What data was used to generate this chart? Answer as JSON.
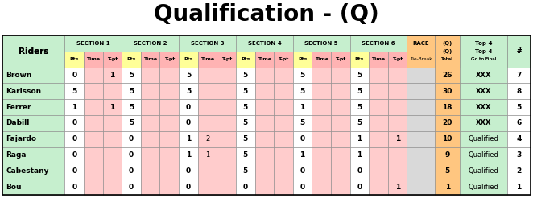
{
  "title": "Qualification - (Q)",
  "sections": [
    "SECTION 1",
    "SECTION 2",
    "SECTION 3",
    "SECTION 4",
    "SECTION 5",
    "SECTION 6"
  ],
  "data": [
    {
      "rider": "Brown",
      "s1": [
        "0",
        "",
        "1"
      ],
      "s2": [
        "5",
        "",
        ""
      ],
      "s3": [
        "5",
        "",
        ""
      ],
      "s4": [
        "5",
        "",
        ""
      ],
      "s5": [
        "5",
        "",
        ""
      ],
      "s6": [
        "5",
        "",
        ""
      ],
      "race": "",
      "total": "26",
      "top4": "XXX",
      "rank": "7"
    },
    {
      "rider": "Karlsson",
      "s1": [
        "5",
        "",
        ""
      ],
      "s2": [
        "5",
        "",
        ""
      ],
      "s3": [
        "5",
        "",
        ""
      ],
      "s4": [
        "5",
        "",
        ""
      ],
      "s5": [
        "5",
        "",
        ""
      ],
      "s6": [
        "5",
        "",
        ""
      ],
      "race": "",
      "total": "30",
      "top4": "XXX",
      "rank": "8"
    },
    {
      "rider": "Ferrer",
      "s1": [
        "1",
        "",
        "1"
      ],
      "s2": [
        "5",
        "",
        ""
      ],
      "s3": [
        "0",
        "",
        ""
      ],
      "s4": [
        "5",
        "",
        ""
      ],
      "s5": [
        "1",
        "",
        ""
      ],
      "s6": [
        "5",
        "",
        ""
      ],
      "race": "",
      "total": "18",
      "top4": "XXX",
      "rank": "5"
    },
    {
      "rider": "Dabill",
      "s1": [
        "0",
        "",
        ""
      ],
      "s2": [
        "5",
        "",
        ""
      ],
      "s3": [
        "0",
        "",
        ""
      ],
      "s4": [
        "5",
        "",
        ""
      ],
      "s5": [
        "5",
        "",
        ""
      ],
      "s6": [
        "5",
        "",
        ""
      ],
      "race": "",
      "total": "20",
      "top4": "XXX",
      "rank": "6"
    },
    {
      "rider": "Fajardo",
      "s1": [
        "0",
        "",
        ""
      ],
      "s2": [
        "0",
        "",
        ""
      ],
      "s3": [
        "1",
        "2",
        ""
      ],
      "s4": [
        "5",
        "",
        ""
      ],
      "s5": [
        "0",
        "",
        ""
      ],
      "s6": [
        "1",
        "",
        "1"
      ],
      "race": "",
      "total": "10",
      "top4": "Qualified",
      "rank": "4"
    },
    {
      "rider": "Raga",
      "s1": [
        "0",
        "",
        ""
      ],
      "s2": [
        "0",
        "",
        ""
      ],
      "s3": [
        "1",
        "1",
        ""
      ],
      "s4": [
        "5",
        "",
        ""
      ],
      "s5": [
        "1",
        "",
        ""
      ],
      "s6": [
        "1",
        "",
        ""
      ],
      "race": "",
      "total": "9",
      "top4": "Qualified",
      "rank": "3"
    },
    {
      "rider": "Cabestany",
      "s1": [
        "0",
        "",
        ""
      ],
      "s2": [
        "0",
        "",
        ""
      ],
      "s3": [
        "0",
        "",
        ""
      ],
      "s4": [
        "5",
        "",
        ""
      ],
      "s5": [
        "0",
        "",
        ""
      ],
      "s6": [
        "0",
        "",
        ""
      ],
      "race": "",
      "total": "5",
      "top4": "Qualified",
      "rank": "2"
    },
    {
      "rider": "Bou",
      "s1": [
        "0",
        "",
        ""
      ],
      "s2": [
        "0",
        "",
        ""
      ],
      "s3": [
        "0",
        "",
        ""
      ],
      "s4": [
        "0",
        "",
        ""
      ],
      "s5": [
        "0",
        "",
        ""
      ],
      "s6": [
        "0",
        "",
        "1"
      ],
      "race": "",
      "total": "1",
      "top4": "Qualified",
      "rank": "1"
    }
  ],
  "colors": {
    "green_header": "#c6efce",
    "yellow_pts": "#ffff99",
    "pink_time": "#ffb3b3",
    "pink_tpt": "#ffb3b3",
    "orange_race": "#ffc680",
    "white_pts_data": "#ffffff",
    "pink_time_data": "#ffcccc",
    "pink_tpt_data": "#ffcccc",
    "orange_total": "#ffc680",
    "race_data": "#d9d9d9",
    "border": "#888888"
  },
  "title_fontsize": 20,
  "fig_w": 6.62,
  "fig_h": 2.46,
  "dpi": 100
}
